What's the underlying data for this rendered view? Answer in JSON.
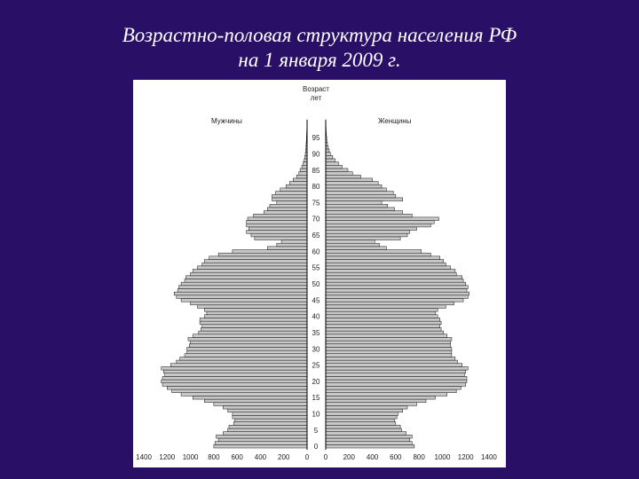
{
  "slide": {
    "title_line1": "Возрастно-половая структура населения РФ",
    "title_line2": "на 1 января 2009 г."
  },
  "chart_data": {
    "type": "bar",
    "orientation": "horizontal",
    "layout": "population-pyramid",
    "age_axis_label_line1": "Возраст",
    "age_axis_label_line2": "лет",
    "left_label": "Мужчины",
    "right_label": "Женщины",
    "ages": [
      0,
      1,
      2,
      3,
      4,
      5,
      6,
      7,
      8,
      9,
      10,
      11,
      12,
      13,
      14,
      15,
      16,
      17,
      18,
      19,
      20,
      21,
      22,
      23,
      24,
      25,
      26,
      27,
      28,
      29,
      30,
      31,
      32,
      33,
      34,
      35,
      36,
      37,
      38,
      39,
      40,
      41,
      42,
      43,
      44,
      45,
      46,
      47,
      48,
      49,
      50,
      51,
      52,
      53,
      54,
      55,
      56,
      57,
      58,
      59,
      60,
      61,
      62,
      63,
      64,
      65,
      66,
      67,
      68,
      69,
      70,
      71,
      72,
      73,
      74,
      75,
      76,
      77,
      78,
      79,
      80,
      81,
      82,
      83,
      84,
      85,
      86,
      87,
      88,
      89,
      90,
      91,
      92,
      93,
      94,
      95,
      96,
      97,
      98,
      99,
      100
    ],
    "age_ticks": [
      0,
      5,
      10,
      15,
      20,
      25,
      30,
      35,
      40,
      45,
      50,
      55,
      60,
      65,
      70,
      75,
      80,
      85,
      90,
      95
    ],
    "x_ticks_left": [
      "1400",
      "1200",
      "1000",
      "800",
      "600",
      "400",
      "200",
      "0"
    ],
    "x_ticks_right": [
      "0",
      "200",
      "400",
      "600",
      "800",
      "1000",
      "1200",
      "1400"
    ],
    "xlim": [
      0,
      1400
    ],
    "series": [
      {
        "name": "Мужчины",
        "side": "left",
        "values": [
          800,
          790,
          760,
          780,
          720,
          680,
          670,
          630,
          620,
          640,
          640,
          680,
          720,
          800,
          880,
          980,
          1080,
          1160,
          1200,
          1240,
          1250,
          1240,
          1220,
          1230,
          1250,
          1170,
          1120,
          1090,
          1050,
          1030,
          1030,
          1010,
          1000,
          1020,
          980,
          930,
          910,
          900,
          920,
          920,
          880,
          860,
          880,
          940,
          1000,
          1080,
          1120,
          1140,
          1110,
          1100,
          1080,
          1050,
          1040,
          1000,
          980,
          940,
          900,
          880,
          840,
          760,
          640,
          340,
          260,
          220,
          450,
          480,
          520,
          500,
          520,
          520,
          510,
          460,
          370,
          340,
          320,
          260,
          300,
          300,
          270,
          230,
          180,
          150,
          120,
          90,
          70,
          60,
          45,
          35,
          25,
          20,
          15,
          12,
          10,
          8,
          6,
          5,
          4,
          3,
          2,
          2,
          1
        ]
      },
      {
        "name": "Женщины",
        "side": "right",
        "values": [
          760,
          740,
          720,
          740,
          690,
          650,
          640,
          600,
          590,
          610,
          620,
          660,
          700,
          780,
          860,
          940,
          1040,
          1120,
          1160,
          1200,
          1210,
          1210,
          1190,
          1200,
          1220,
          1170,
          1130,
          1110,
          1080,
          1080,
          1080,
          1070,
          1070,
          1080,
          1040,
          1010,
          990,
          980,
          990,
          980,
          960,
          940,
          960,
          1030,
          1100,
          1180,
          1220,
          1230,
          1210,
          1220,
          1200,
          1180,
          1170,
          1120,
          1110,
          1070,
          1030,
          1010,
          980,
          900,
          820,
          520,
          460,
          420,
          640,
          700,
          720,
          780,
          900,
          930,
          970,
          740,
          660,
          590,
          530,
          480,
          660,
          600,
          580,
          520,
          480,
          450,
          400,
          300,
          230,
          190,
          140,
          110,
          80,
          60,
          40,
          30,
          22,
          15,
          10,
          8,
          6,
          4,
          3,
          2,
          1
        ]
      }
    ]
  }
}
